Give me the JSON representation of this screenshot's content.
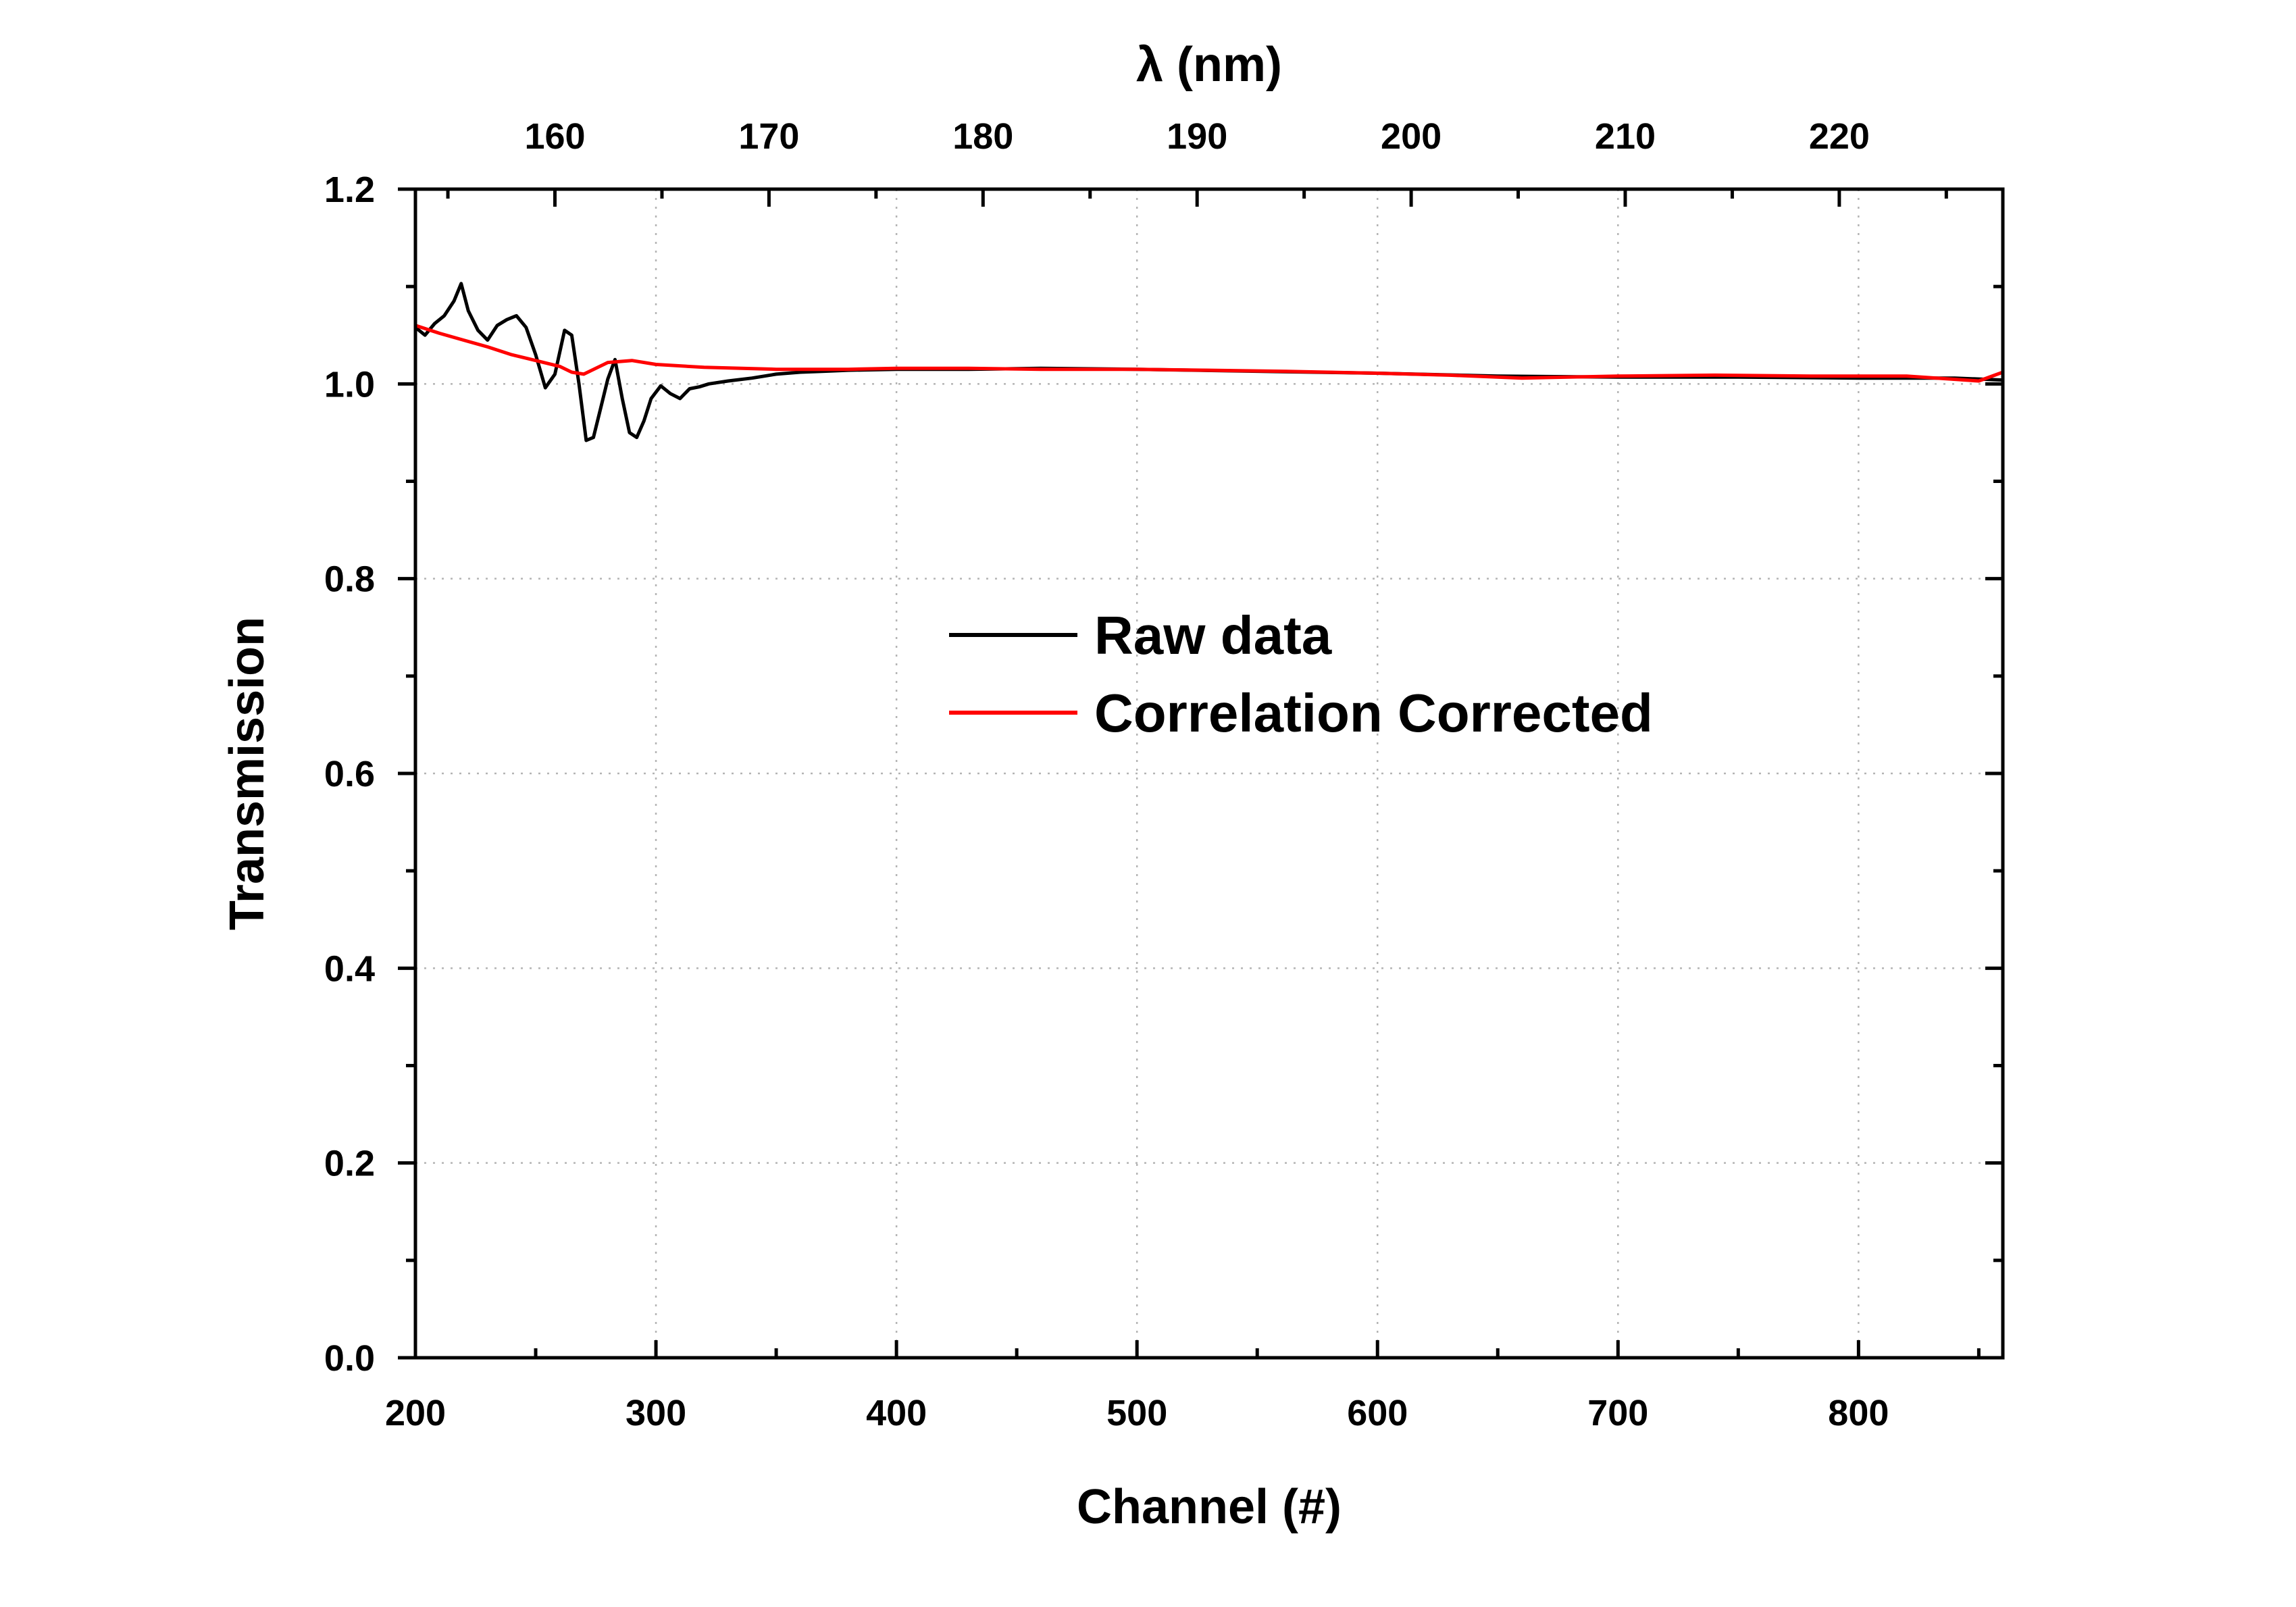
{
  "chart_data": {
    "type": "line",
    "xlabel": "Channel (#)",
    "ylabel": "Transmission",
    "x2label": "λ (nm)",
    "xlim": [
      200,
      860
    ],
    "ylim": [
      0.0,
      1.2
    ],
    "x_ticks": [
      200,
      300,
      400,
      500,
      600,
      700,
      800
    ],
    "x_tick_labels": [
      "200",
      "300",
      "400",
      "500",
      "600",
      "700",
      "800"
    ],
    "y_ticks": [
      0.0,
      0.2,
      0.4,
      0.6,
      0.8,
      1.0,
      1.2
    ],
    "y_tick_labels": [
      "0.0",
      "0.2",
      "0.4",
      "0.6",
      "0.8",
      "1.0",
      "1.2"
    ],
    "top_axis": {
      "label": "λ (nm)",
      "ticks_channel": [
        258,
        347,
        436,
        525,
        614,
        703,
        792
      ],
      "tick_labels": [
        "160",
        "170",
        "180",
        "190",
        "200",
        "210",
        "220"
      ]
    },
    "grid": true,
    "legend_position": "center-right",
    "series": [
      {
        "name": "Raw data",
        "color": "#000000",
        "x": [
          200,
          204,
          208,
          212,
          216,
          219,
          222,
          226,
          230,
          234,
          238,
          242,
          246,
          250,
          254,
          258,
          262,
          265,
          268,
          271,
          274,
          277,
          280,
          283,
          286,
          289,
          292,
          295,
          298,
          302,
          306,
          310,
          314,
          318,
          322,
          330,
          340,
          350,
          360,
          370,
          380,
          400,
          430,
          460,
          500,
          550,
          600,
          650,
          700,
          750,
          800,
          840,
          860
        ],
        "y": [
          1.058,
          1.05,
          1.062,
          1.07,
          1.085,
          1.103,
          1.075,
          1.055,
          1.045,
          1.06,
          1.066,
          1.07,
          1.058,
          1.03,
          0.996,
          1.01,
          1.055,
          1.05,
          1.0,
          0.942,
          0.945,
          0.975,
          1.005,
          1.025,
          0.985,
          0.95,
          0.945,
          0.962,
          0.985,
          0.998,
          0.99,
          0.985,
          0.995,
          0.997,
          1.0,
          1.003,
          1.006,
          1.01,
          1.012,
          1.013,
          1.014,
          1.015,
          1.015,
          1.016,
          1.015,
          1.013,
          1.011,
          1.008,
          1.007,
          1.007,
          1.006,
          1.006,
          1.004
        ]
      },
      {
        "name": "Correlation Corrected",
        "color": "#ff0000",
        "x": [
          200,
          210,
          220,
          230,
          240,
          250,
          260,
          265,
          270,
          280,
          290,
          300,
          320,
          350,
          380,
          400,
          430,
          460,
          500,
          530,
          560,
          600,
          630,
          660,
          700,
          740,
          780,
          820,
          850,
          860
        ],
        "y": [
          1.06,
          1.052,
          1.045,
          1.038,
          1.03,
          1.024,
          1.018,
          1.012,
          1.01,
          1.022,
          1.024,
          1.02,
          1.017,
          1.015,
          1.015,
          1.016,
          1.016,
          1.015,
          1.015,
          1.014,
          1.013,
          1.011,
          1.009,
          1.006,
          1.008,
          1.009,
          1.008,
          1.008,
          1.003,
          1.012
        ]
      }
    ]
  }
}
